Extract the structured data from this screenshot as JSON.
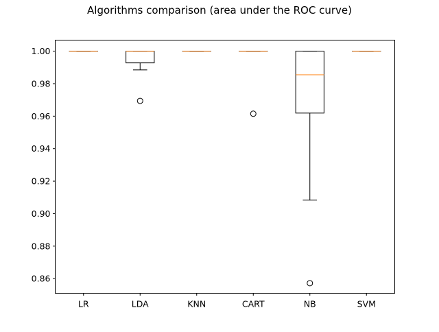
{
  "chart_data": {
    "type": "box",
    "title": "Algorithms comparison (area under the ROC curve)",
    "xlabel": "",
    "ylabel": "",
    "ylim": [
      0.851,
      1.0068
    ],
    "yticks": [
      "0.86",
      "0.88",
      "0.90",
      "0.92",
      "0.94",
      "0.96",
      "0.98",
      "1.00"
    ],
    "ytick_values": [
      0.86,
      0.88,
      0.9,
      0.92,
      0.94,
      0.96,
      0.98,
      1.0
    ],
    "categories": [
      "LR",
      "LDA",
      "KNN",
      "CART",
      "NB",
      "SVM"
    ],
    "boxes": [
      {
        "label": "LR",
        "whisker_low": 1.0,
        "q1": 1.0,
        "median": 1.0,
        "q3": 1.0,
        "whisker_high": 1.0,
        "outliers": []
      },
      {
        "label": "LDA",
        "whisker_low": 0.9885,
        "q1": 0.9928,
        "median": 1.0,
        "q3": 1.0,
        "whisker_high": 1.0,
        "outliers": [
          0.9694
        ]
      },
      {
        "label": "KNN",
        "whisker_low": 1.0,
        "q1": 1.0,
        "median": 1.0,
        "q3": 1.0,
        "whisker_high": 1.0,
        "outliers": []
      },
      {
        "label": "CART",
        "whisker_low": 1.0,
        "q1": 1.0,
        "median": 1.0,
        "q3": 1.0,
        "whisker_high": 1.0,
        "outliers": [
          0.9615
        ]
      },
      {
        "label": "NB",
        "whisker_low": 0.9083,
        "q1": 0.9619,
        "median": 0.9855,
        "q3": 1.0,
        "whisker_high": 1.0,
        "outliers": [
          0.8572
        ]
      },
      {
        "label": "SVM",
        "whisker_low": 1.0,
        "q1": 1.0,
        "median": 1.0,
        "q3": 1.0,
        "whisker_high": 1.0,
        "outliers": []
      }
    ],
    "colors": {
      "box": "#000000",
      "median": "#ff7f0e",
      "outlier": "#000000",
      "background": "#ffffff"
    },
    "grid": false,
    "legend": "none"
  }
}
